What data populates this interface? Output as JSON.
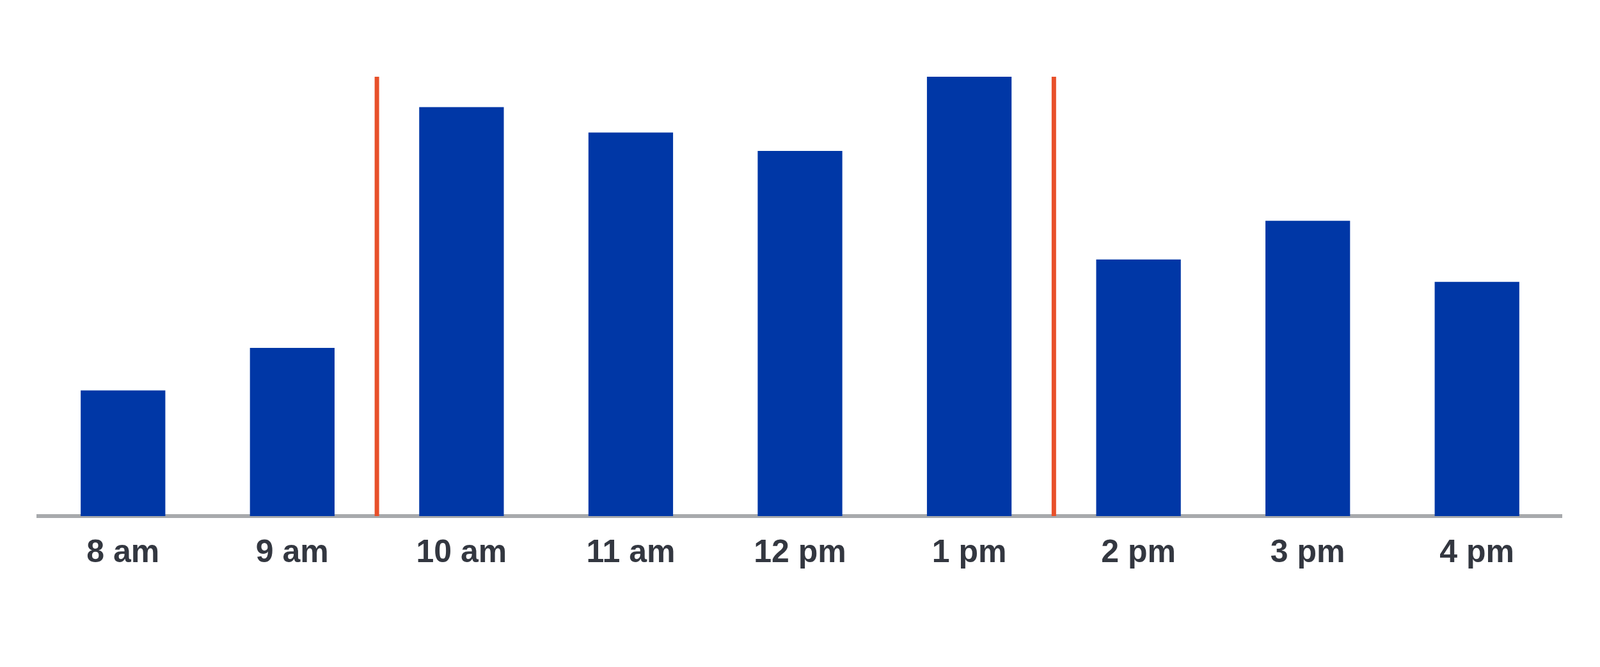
{
  "chart_data": {
    "type": "bar",
    "categories": [
      "8 am",
      "9 am",
      "10 am",
      "11 am",
      "12 pm",
      "1 pm",
      "2 pm",
      "3 pm",
      "4 pm"
    ],
    "values": [
      28.6,
      38.3,
      93.1,
      87.3,
      83.1,
      100,
      58.4,
      67.2,
      53.3
    ],
    "color": "#0037a6",
    "ylim": [
      0,
      100
    ],
    "grid": false,
    "tick_labels": "x",
    "vertical_lines": [
      {
        "x": 1.5,
        "color": "#e8502a"
      },
      {
        "x": 5.5,
        "color": "#e8502a"
      }
    ]
  }
}
